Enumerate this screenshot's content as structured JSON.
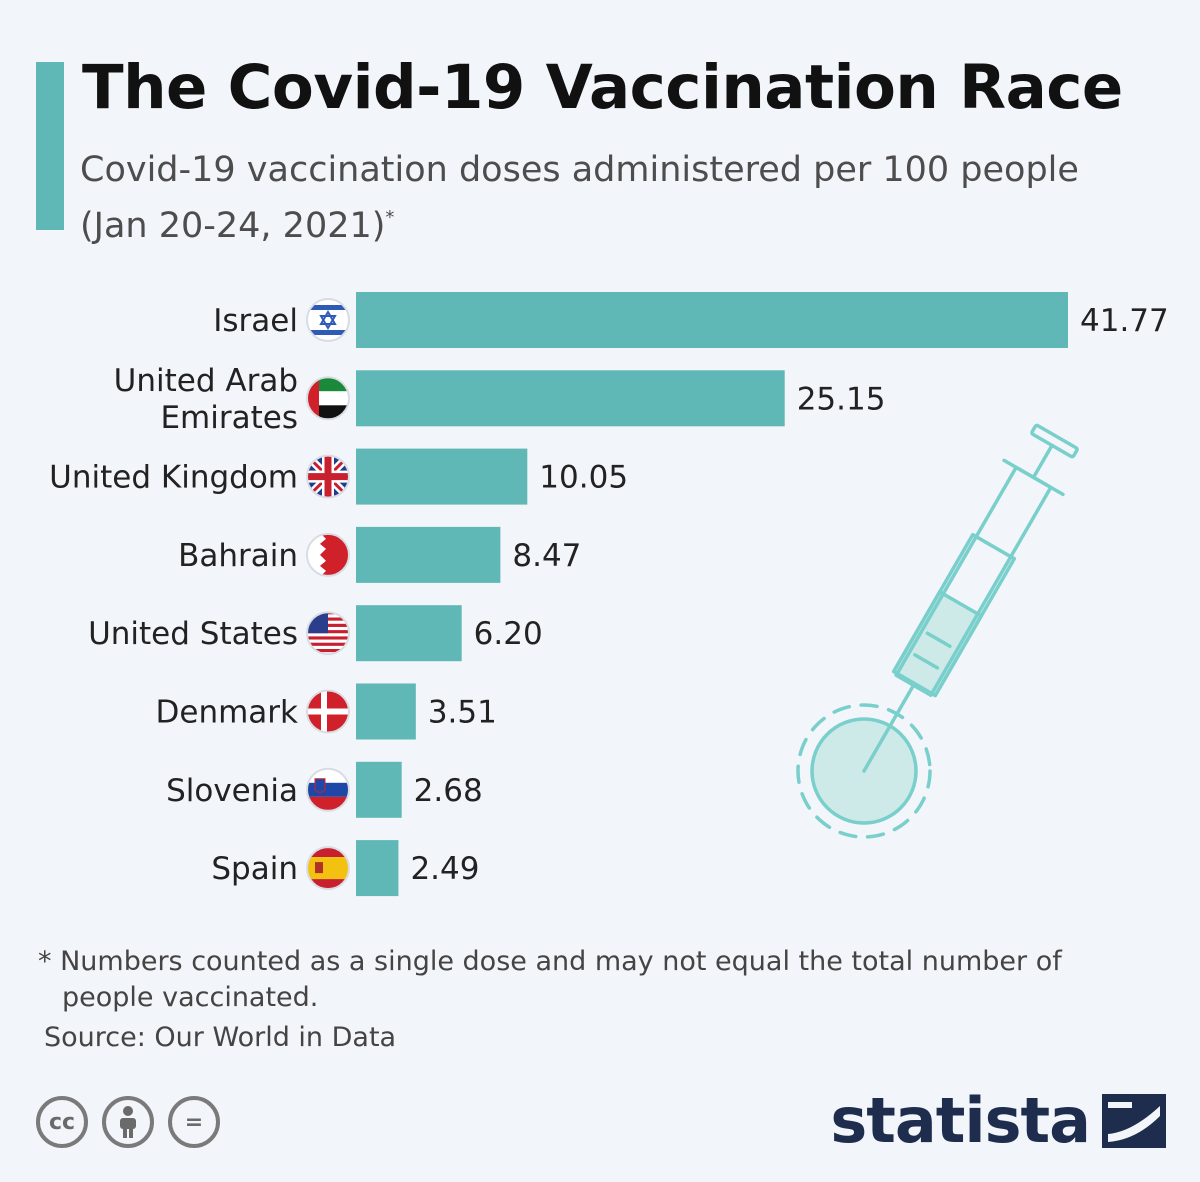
{
  "header": {
    "title": "The Covid-19 Vaccination Race",
    "subtitle": "Covid-19 vaccination doses administered per 100 people (Jan 20-24, 2021)",
    "subtitle_mark": "*"
  },
  "colors": {
    "accent": "#5fb8b5",
    "bar": "#5fb8b5",
    "text": "#222222",
    "brand": "#1e2d4d"
  },
  "chart_data": {
    "type": "bar",
    "orientation": "horizontal",
    "title": "The Covid-19 Vaccination Race",
    "xlabel": "",
    "ylabel": "",
    "categories": [
      "Israel",
      "United Arab Emirates",
      "United Kingdom",
      "Bahrain",
      "United States",
      "Denmark",
      "Slovenia",
      "Spain"
    ],
    "category_lines": [
      [
        "Israel"
      ],
      [
        "United Arab",
        "Emirates"
      ],
      [
        "United Kingdom"
      ],
      [
        "Bahrain"
      ],
      [
        "United States"
      ],
      [
        "Denmark"
      ],
      [
        "Slovenia"
      ],
      [
        "Spain"
      ]
    ],
    "values": [
      41.77,
      25.15,
      10.05,
      8.47,
      6.2,
      3.51,
      2.68,
      2.49
    ],
    "value_labels": [
      "41.77",
      "25.15",
      "10.05",
      "8.47",
      "6.20",
      "3.51",
      "2.68",
      "2.49"
    ],
    "flags": [
      "israel-flag-icon",
      "uae-flag-icon",
      "uk-flag-icon",
      "bahrain-flag-icon",
      "us-flag-icon",
      "denmark-flag-icon",
      "slovenia-flag-icon",
      "spain-flag-icon"
    ],
    "xlim": [
      0,
      41.77
    ],
    "grid": false,
    "legend": "none"
  },
  "footer": {
    "footnote": "* Numbers counted as a single dose and may not equal the total number of people vaccinated.",
    "source": "Source: Our World in Data",
    "license_icons": [
      "cc-icon",
      "attribution-icon",
      "no-derivatives-icon"
    ],
    "license_labels": [
      "cc",
      "",
      "="
    ],
    "brand": "statista"
  },
  "illustration": {
    "icon": "syringe-virus-icon"
  }
}
